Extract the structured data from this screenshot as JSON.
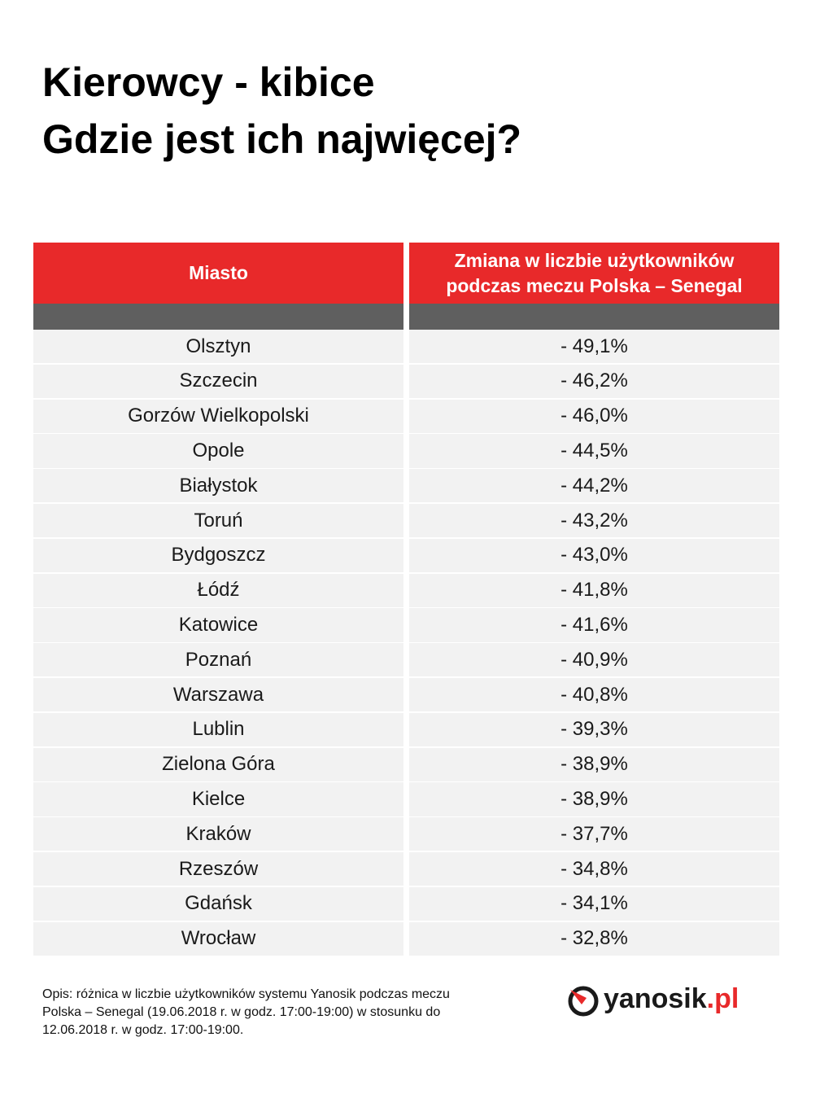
{
  "header": {
    "title": [
      "Kierowcy - kibice",
      "Gdzie jest ich najwięcej?"
    ]
  },
  "table": {
    "columns": [
      [
        "Miasto"
      ],
      [
        "Zmiana w liczbie użytkowników",
        "podczas meczu Polska – Senegal"
      ]
    ],
    "rows": [
      [
        "Olsztyn",
        "- 49,1%"
      ],
      [
        "Szczecin",
        "- 46,2%"
      ],
      [
        "Gorzów Wielkopolski",
        "- 46,0%"
      ],
      [
        "Opole",
        "- 44,5%"
      ],
      [
        "Białystok",
        "- 44,2%"
      ],
      [
        "Toruń",
        "- 43,2%"
      ],
      [
        "Bydgoszcz",
        "- 43,0%"
      ],
      [
        "Łódź",
        "- 41,8%"
      ],
      [
        "Katowice",
        "- 41,6%"
      ],
      [
        "Poznań",
        "- 40,9%"
      ],
      [
        "Warszawa",
        "- 40,8%"
      ],
      [
        "Lublin",
        "- 39,3%"
      ],
      [
        "Zielona Góra",
        "- 38,9%"
      ],
      [
        "Kielce",
        "- 38,9%"
      ],
      [
        "Kraków",
        "- 37,7%"
      ],
      [
        "Rzeszów",
        "- 34,8%"
      ],
      [
        "Gdańsk",
        "- 34,1%"
      ],
      [
        "Wrocław",
        "- 32,8%"
      ]
    ]
  },
  "footer": {
    "note": [
      "Opis: różnica w liczbie użytkowników  systemu Yanosik podczas meczu",
      "Polska – Senegal (19.06.2018 r. w godz. 17:00-19:00) w stosunku do",
      "12.06.2018 r. w godz. 17:00-19:00."
    ],
    "logo": {
      "name": "yanosik",
      "tld": ".pl"
    }
  }
}
